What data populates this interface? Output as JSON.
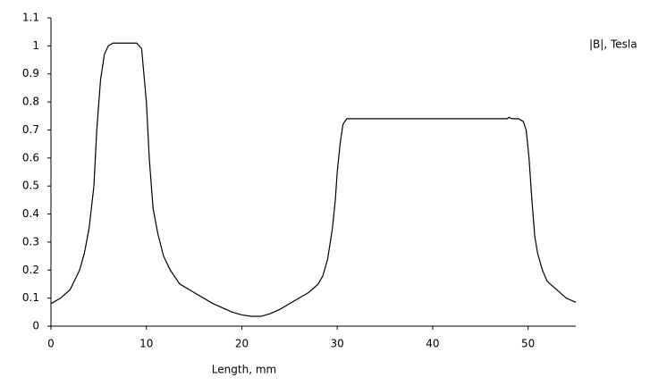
{
  "chart_data": {
    "type": "line",
    "x_label": "Length, mm",
    "y_label": "|B|, Tesla",
    "xlim": [
      0,
      55
    ],
    "ylim": [
      0,
      1.1
    ],
    "xticks": [
      0,
      10,
      20,
      30,
      40,
      50
    ],
    "yticks": [
      0,
      0.1,
      0.2,
      0.3,
      0.4,
      0.5,
      0.6,
      0.7,
      0.8,
      0.9,
      1,
      1.1
    ],
    "grid": false,
    "series": [
      {
        "color": "#000000",
        "x": [
          0,
          1,
          2,
          3,
          3.5,
          4,
          4.5,
          4.8,
          5.2,
          5.6,
          6,
          6.5,
          7,
          8,
          9,
          9.5,
          10,
          10.3,
          10.7,
          11.2,
          11.8,
          12.5,
          13.5,
          15,
          17,
          19,
          20,
          21,
          22,
          23,
          24,
          25,
          26,
          27,
          28,
          28.5,
          29,
          29.5,
          29.8,
          30,
          30.3,
          30.6,
          31,
          35,
          40,
          45,
          47.8,
          48,
          48.3,
          49,
          49.5,
          49.8,
          50.1,
          50.4,
          50.7,
          51,
          51.5,
          52,
          53,
          54,
          55
        ],
        "values": [
          0.08,
          0.1,
          0.13,
          0.2,
          0.26,
          0.35,
          0.5,
          0.7,
          0.88,
          0.97,
          1.0,
          1.01,
          1.01,
          1.01,
          1.01,
          0.99,
          0.8,
          0.6,
          0.42,
          0.33,
          0.25,
          0.2,
          0.15,
          0.12,
          0.08,
          0.05,
          0.04,
          0.035,
          0.035,
          0.045,
          0.06,
          0.08,
          0.1,
          0.12,
          0.15,
          0.18,
          0.24,
          0.35,
          0.45,
          0.55,
          0.65,
          0.72,
          0.74,
          0.74,
          0.74,
          0.74,
          0.74,
          0.745,
          0.74,
          0.74,
          0.73,
          0.7,
          0.6,
          0.45,
          0.32,
          0.26,
          0.2,
          0.16,
          0.13,
          0.1,
          0.085
        ]
      }
    ]
  }
}
